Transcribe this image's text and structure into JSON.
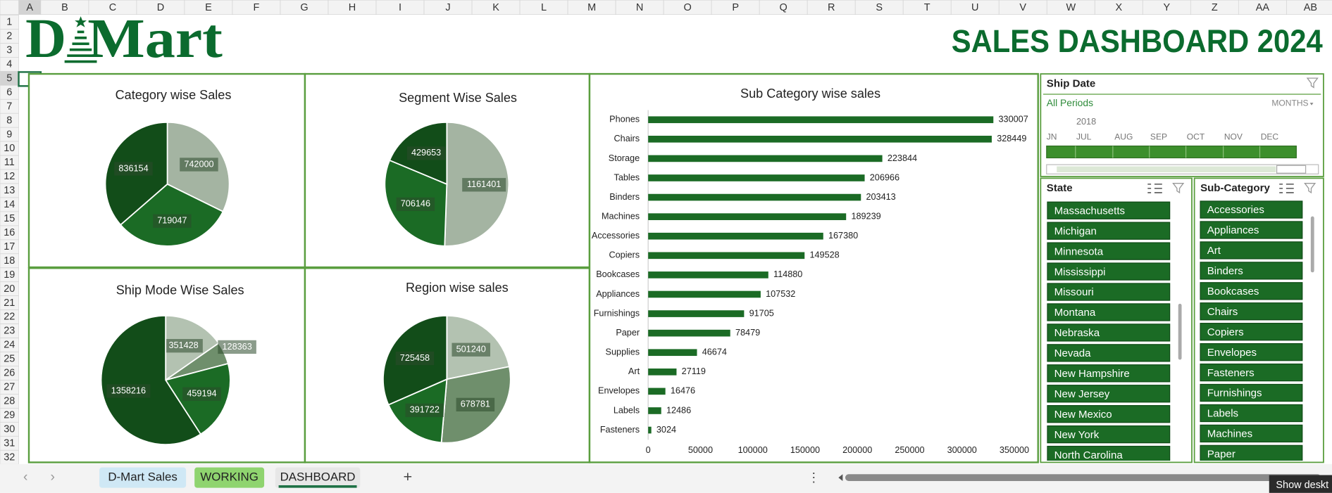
{
  "sheet": {
    "columns": [
      "A",
      "B",
      "C",
      "D",
      "E",
      "F",
      "G",
      "H",
      "I",
      "J",
      "K",
      "L",
      "M",
      "N",
      "O",
      "P",
      "Q",
      "R",
      "S",
      "T",
      "U",
      "V",
      "W",
      "X",
      "Y",
      "Z",
      "AA",
      "AB"
    ],
    "rows": [
      1,
      2,
      3,
      4,
      5,
      6,
      7,
      8,
      9,
      10,
      11,
      12,
      13,
      14,
      15,
      16,
      17,
      18,
      19,
      20,
      21,
      22,
      23,
      24,
      25,
      26,
      27,
      28,
      29,
      30,
      31,
      32
    ]
  },
  "header": {
    "logo_left": "D",
    "logo_right": "Mart",
    "title": "SALES DASHBOARD 2024"
  },
  "chart_data": [
    {
      "type": "pie",
      "title": "Category wise Sales",
      "values": [
        742000,
        719047,
        836154
      ],
      "colors": [
        "#a4b4a2",
        "#1b6b25",
        "#124d19"
      ]
    },
    {
      "type": "pie",
      "title": "Segment Wise Sales",
      "values": [
        1161401,
        706146,
        429653
      ],
      "colors": [
        "#a4b4a2",
        "#1b6b25",
        "#124d19"
      ]
    },
    {
      "type": "pie",
      "title": "Ship Mode Wise Sales",
      "values": [
        351428,
        128363,
        459194,
        1358216
      ],
      "colors": [
        "#b3c2b1",
        "#6f8f6c",
        "#1b6b25",
        "#124d19"
      ]
    },
    {
      "type": "pie",
      "title": "Region wise sales",
      "values": [
        501240,
        678781,
        391722,
        725458
      ],
      "colors": [
        "#b3c2b1",
        "#6f8f6c",
        "#1b6b25",
        "#124d19"
      ]
    },
    {
      "type": "bar",
      "orientation": "horizontal",
      "title": "Sub Category wise sales",
      "categories": [
        "Phones",
        "Chairs",
        "Storage",
        "Tables",
        "Binders",
        "Machines",
        "Accessories",
        "Copiers",
        "Bookcases",
        "Appliances",
        "Furnishings",
        "Paper",
        "Supplies",
        "Art",
        "Envelopes",
        "Labels",
        "Fasteners"
      ],
      "values": [
        330007,
        328449,
        223844,
        206966,
        203413,
        189239,
        167380,
        149528,
        114880,
        107532,
        91705,
        78479,
        46674,
        27119,
        16476,
        12486,
        3024
      ],
      "color": "#1b6b25",
      "data_labels": true,
      "xlim": [
        0,
        350000
      ],
      "xticks": [
        0,
        50000,
        100000,
        150000,
        200000,
        250000,
        300000,
        350000
      ],
      "grid": false
    }
  ],
  "ship_date_slicer": {
    "title": "Ship Date",
    "filter": "All Periods",
    "level": "MONTHS",
    "year": 2018,
    "months": [
      "JN",
      "JUL",
      "AUG",
      "SEP",
      "OCT",
      "NOV",
      "DEC"
    ]
  },
  "state_slicer": {
    "title": "State",
    "items": [
      "Massachusetts",
      "Michigan",
      "Minnesota",
      "Mississippi",
      "Missouri",
      "Montana",
      "Nebraska",
      "Nevada",
      "New Hampshire",
      "New Jersey",
      "New Mexico",
      "New York",
      "North Carolina"
    ]
  },
  "subcategory_slicer": {
    "title": "Sub-Category",
    "items": [
      "Accessories",
      "Appliances",
      "Art",
      "Binders",
      "Bookcases",
      "Chairs",
      "Copiers",
      "Envelopes",
      "Fasteners",
      "Furnishings",
      "Labels",
      "Machines",
      "Paper"
    ]
  },
  "tabs": [
    "D-Mart Sales",
    "WORKING",
    "DASHBOARD"
  ],
  "tooltip": "Show deskt"
}
